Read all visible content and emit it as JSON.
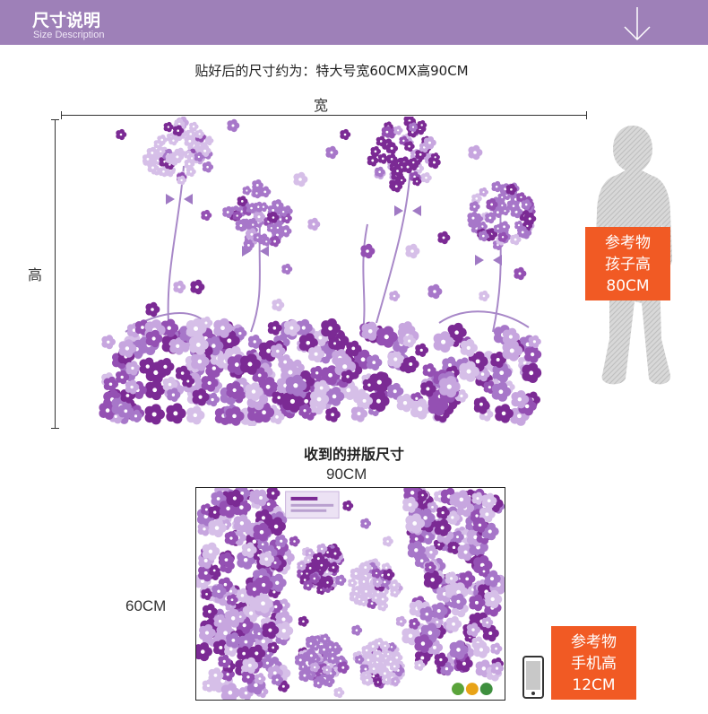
{
  "header": {
    "title": "尺寸说明",
    "subtitle": "Size Description",
    "arrow_icon": "down-arrow-icon",
    "color": "#9e80b8"
  },
  "headline": "贴好后的尺寸约为：特大号宽60CMX高90CM",
  "dimension": {
    "width_label": "宽",
    "height_label": "高"
  },
  "reference_child": {
    "line1": "参考物",
    "line2": "孩子高",
    "line3": "80CM"
  },
  "received": {
    "title": "收到的拼版尺寸",
    "width_label": "90CM",
    "height_label": "60CM"
  },
  "reference_phone": {
    "line1": "参考物",
    "line2": "手机高",
    "line3": "12CM"
  },
  "colors": {
    "accent": "#f15a24",
    "flower_dark": "#7b2a94",
    "flower_mid": "#a777c9",
    "flower_light": "#d6bfe8"
  }
}
